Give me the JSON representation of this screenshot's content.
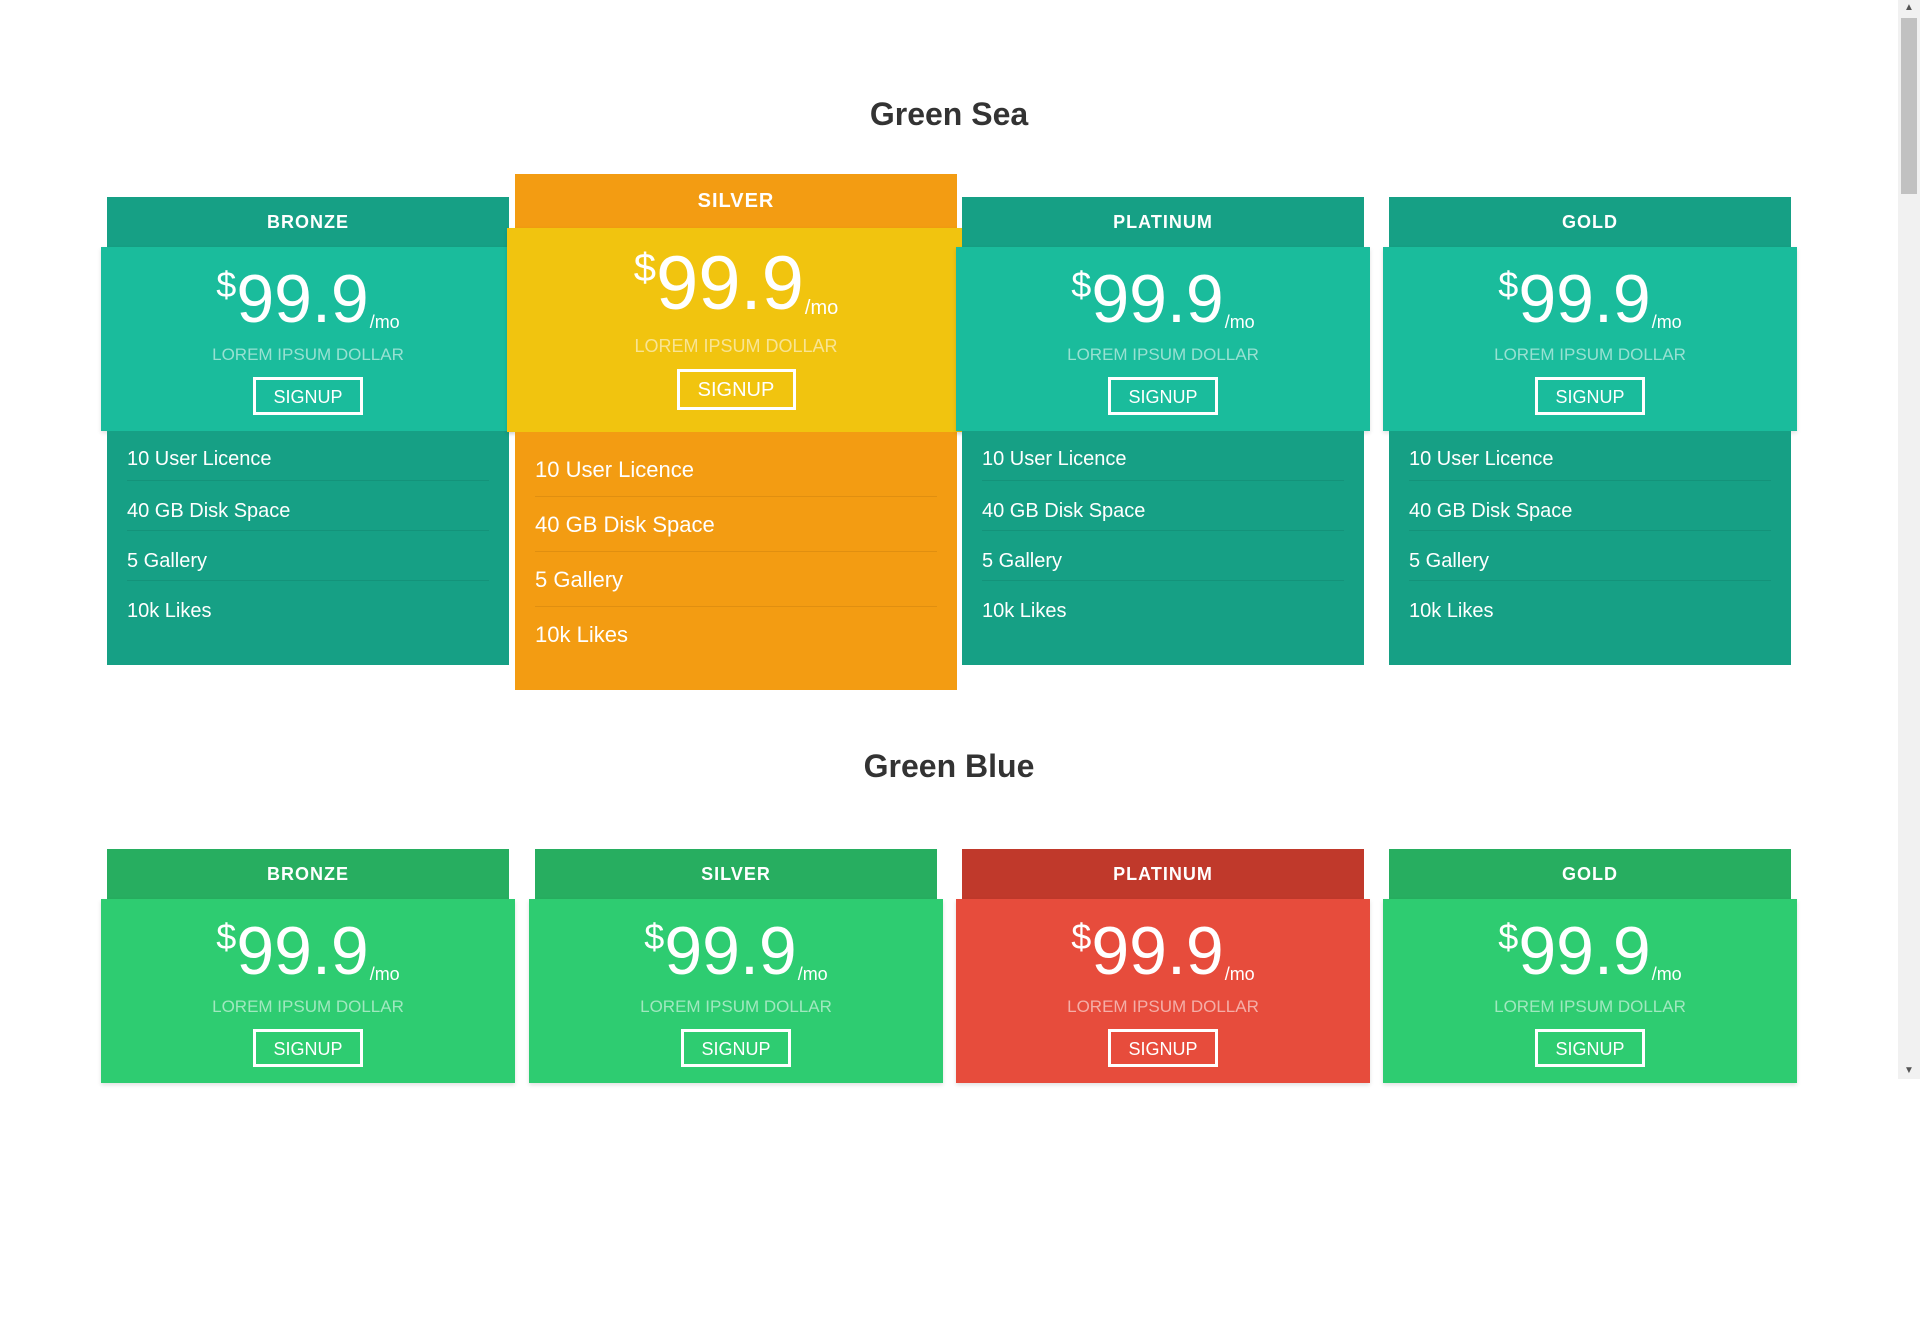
{
  "sections": [
    {
      "title": "Green Sea",
      "cards": [
        {
          "name": "BRONZE",
          "currency": "$",
          "price": "99.9",
          "period": "/mo",
          "subtitle": "LOREM IPSUM DOLLAR",
          "button": "SIGNUP",
          "features": [
            "10 User Licence",
            "40 GB Disk Space",
            "5 Gallery",
            "10k Likes"
          ]
        },
        {
          "name": "SILVER",
          "currency": "$",
          "price": "99.9",
          "period": "/mo",
          "subtitle": "LOREM IPSUM DOLLAR",
          "button": "SIGNUP",
          "features": [
            "10 User Licence",
            "40 GB Disk Space",
            "5 Gallery",
            "10k Likes"
          ]
        },
        {
          "name": "PLATINUM",
          "currency": "$",
          "price": "99.9",
          "period": "/mo",
          "subtitle": "LOREM IPSUM DOLLAR",
          "button": "SIGNUP",
          "features": [
            "10 User Licence",
            "40 GB Disk Space",
            "5 Gallery",
            "10k Likes"
          ]
        },
        {
          "name": "GOLD",
          "currency": "$",
          "price": "99.9",
          "period": "/mo",
          "subtitle": "LOREM IPSUM DOLLAR",
          "button": "SIGNUP",
          "features": [
            "10 User Licence",
            "40 GB Disk Space",
            "5 Gallery",
            "10k Likes"
          ]
        }
      ]
    },
    {
      "title": "Green Blue",
      "cards": [
        {
          "name": "BRONZE",
          "currency": "$",
          "price": "99.9",
          "period": "/mo",
          "subtitle": "LOREM IPSUM DOLLAR",
          "button": "SIGNUP"
        },
        {
          "name": "SILVER",
          "currency": "$",
          "price": "99.9",
          "period": "/mo",
          "subtitle": "LOREM IPSUM DOLLAR",
          "button": "SIGNUP"
        },
        {
          "name": "PLATINUM",
          "currency": "$",
          "price": "99.9",
          "period": "/mo",
          "subtitle": "LOREM IPSUM DOLLAR",
          "button": "SIGNUP"
        },
        {
          "name": "GOLD",
          "currency": "$",
          "price": "99.9",
          "period": "/mo",
          "subtitle": "LOREM IPSUM DOLLAR",
          "button": "SIGNUP"
        }
      ]
    }
  ],
  "colors": {
    "sea_header": "#16a085",
    "sea_body": "#1abc9c",
    "sea_features": "#16a085",
    "featured_header": "#f39c12",
    "featured_body": "#f1c40f",
    "featured_features": "#f39c12",
    "blue_header": "#27ae60",
    "blue_body": "#2ecc71",
    "highlight_header": "#c0392b",
    "highlight_body": "#e74c3c"
  },
  "scrollbar": {
    "up_icon": "triangle-up",
    "down_icon": "triangle-down"
  }
}
